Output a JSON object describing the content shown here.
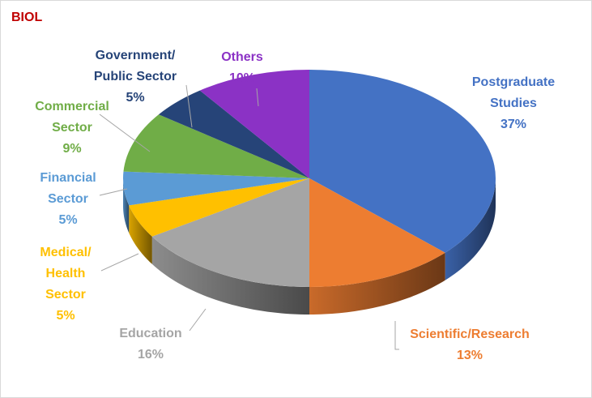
{
  "chart_data": {
    "type": "pie",
    "title": "BIOL",
    "slices": [
      {
        "label": "Postgraduate Studies",
        "value": 37,
        "pct": "37%",
        "color": "#4472c4"
      },
      {
        "label": "Scientific/Research",
        "value": 13,
        "pct": "13%",
        "color": "#ed7d31"
      },
      {
        "label": "Education",
        "value": 16,
        "pct": "16%",
        "color": "#a5a5a5"
      },
      {
        "label": "Medical/ Health Sector",
        "value": 5,
        "pct": "5%",
        "color": "#ffc000"
      },
      {
        "label": "Financial Sector",
        "value": 5,
        "pct": "5%",
        "color": "#5b9bd5"
      },
      {
        "label": "Commercial Sector",
        "value": 9,
        "pct": "9%",
        "color": "#70ad47"
      },
      {
        "label": "Government/ Public Sector",
        "value": 5,
        "pct": "5%",
        "color": "#264478"
      },
      {
        "label": "Others",
        "value": 10,
        "pct": "10%",
        "color": "#8b32c5"
      }
    ],
    "style": "3d-pie"
  }
}
